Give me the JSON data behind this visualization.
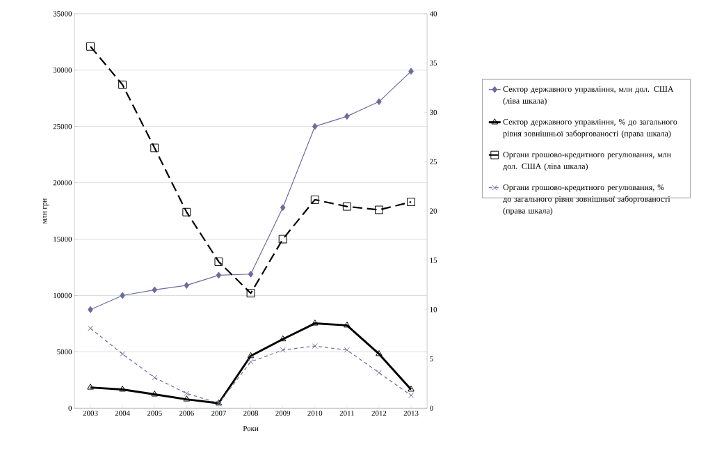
{
  "chart_data": {
    "type": "line",
    "xlabel": "Роки",
    "ylabel": "млн грн",
    "categories": [
      "2003",
      "2004",
      "2005",
      "2006",
      "2007",
      "2008",
      "2009",
      "2010",
      "2011",
      "2012",
      "2013"
    ],
    "ylim": [
      0,
      35000
    ],
    "yticks": [
      0,
      5000,
      10000,
      15000,
      20000,
      25000,
      30000,
      35000
    ],
    "y2lim": [
      0,
      40
    ],
    "y2ticks": [
      0,
      5,
      10,
      15,
      20,
      25,
      30,
      35,
      40
    ],
    "grid": "y",
    "legend": "right",
    "series": [
      {
        "name": "Сектор державного управління, млн дол. США (ліва шкала)",
        "color": "#6b6ba0",
        "marker": "diamond",
        "line_style": "solid",
        "values": [
          8750,
          10000,
          10500,
          10900,
          11800,
          11900,
          17800,
          25000,
          25900,
          27200,
          29900
        ]
      },
      {
        "name": "Сектор державного управління, % до загального рівня зовнішньої заборгованості (права шкала)",
        "color": "#000000",
        "marker": "triangle",
        "line_style": "solid",
        "axis": "y2",
        "values": [
          2.1,
          1.9,
          1.4,
          0.9,
          0.5,
          5.3,
          7.0,
          8.6,
          8.4,
          5.5,
          1.9
        ]
      },
      {
        "name": "Органи грошово-кредитного регулювання, млн дол. США (ліва шкала)",
        "color": "#000000",
        "marker": "square",
        "line_style": "dashed",
        "values": [
          32100,
          28700,
          23100,
          17400,
          13000,
          10200,
          15000,
          18500,
          17900,
          17600,
          18300
        ]
      },
      {
        "name": "Органи грошово-кредитного регулювання, % до загального рівня зовнішньої заборгованості (права шкала)",
        "color": "#6b6ba0",
        "marker": "cross",
        "line_style": "dotted",
        "axis": "y2",
        "values": [
          8.1,
          5.5,
          3.1,
          1.5,
          0.5,
          4.7,
          5.9,
          6.3,
          5.9,
          3.6,
          1.3
        ]
      }
    ]
  }
}
